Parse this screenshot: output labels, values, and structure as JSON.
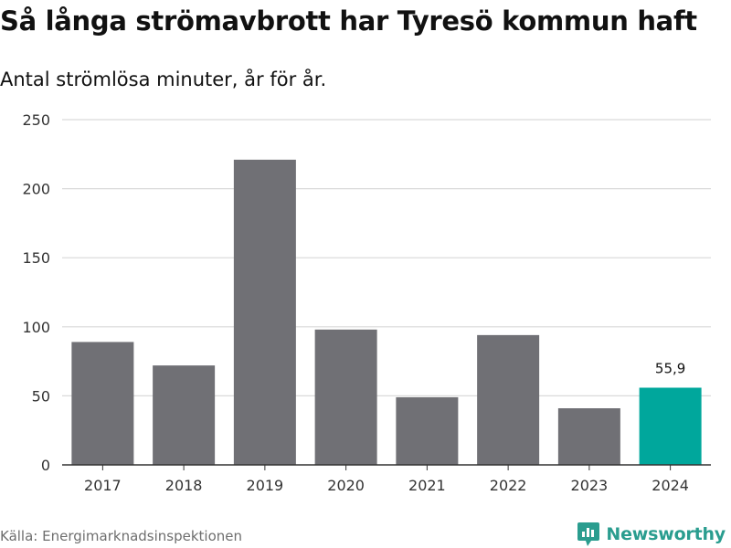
{
  "title": "Så långa strömavbrott har Tyresö kommun haft",
  "subtitle": "Antal strömlösa minuter, år för år.",
  "source": "Källa: Energimarknadsinspektionen",
  "brand": {
    "name": "Newsworthy",
    "icon": "newsworthy-logo-icon"
  },
  "colors": {
    "bar": "#707075",
    "highlight": "#00a79c",
    "grid": "#d9d9d9",
    "axis": "#333333",
    "brand": "#2a9d8f"
  },
  "chart_data": {
    "type": "bar",
    "title": "Så långa strömavbrott har Tyresö kommun haft",
    "subtitle": "Antal strömlösa minuter, år för år.",
    "xlabel": "",
    "ylabel": "",
    "ylim": [
      0,
      250
    ],
    "yticks": [
      0,
      50,
      100,
      150,
      200,
      250
    ],
    "grid": true,
    "categories": [
      "2017",
      "2018",
      "2019",
      "2020",
      "2021",
      "2022",
      "2023",
      "2024"
    ],
    "values": [
      89,
      72,
      221,
      98,
      49,
      94,
      41,
      55.9
    ],
    "highlight_index": 7,
    "annotations": [
      {
        "category": "2024",
        "text": "55,9"
      }
    ]
  }
}
